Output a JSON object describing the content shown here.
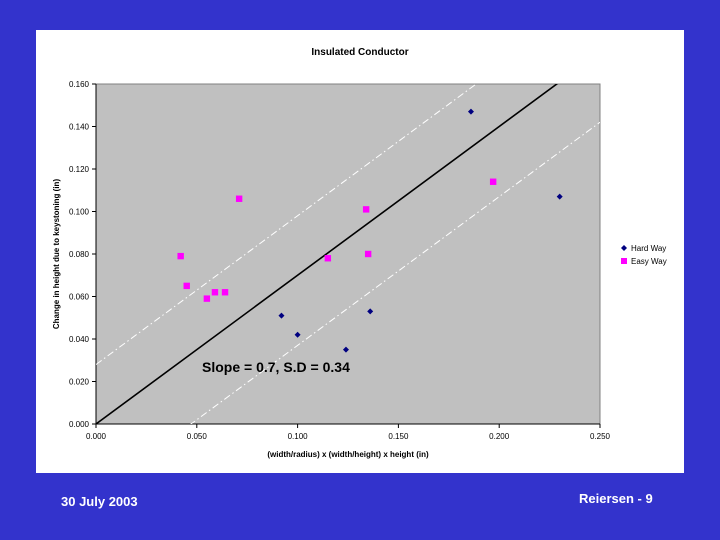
{
  "colors": {
    "background": "#3333cc",
    "panel": "#ffffff",
    "plot_area": "#c0c0c0",
    "hard_way": "#000080",
    "easy_way": "#ff00ff",
    "fit_line": "#000000",
    "band_line": "#ffffff"
  },
  "footer": {
    "date": "30 July 2003",
    "page": "Reiersen - 9"
  },
  "chart_data": {
    "type": "scatter",
    "title": "Insulated Conductor",
    "xlabel": "(width/radius) x (width/height) x height (in)",
    "ylabel": "Change in height due to keystoning (in)",
    "xlim": [
      0.0,
      0.25
    ],
    "ylim": [
      0.0,
      0.16
    ],
    "x_ticks": [
      "0.000",
      "0.050",
      "0.100",
      "0.150",
      "0.200",
      "0.250"
    ],
    "y_ticks": [
      "0.000",
      "0.020",
      "0.040",
      "0.060",
      "0.080",
      "0.100",
      "0.120",
      "0.140",
      "0.160"
    ],
    "grid": false,
    "legend_position": "right",
    "annotation": "Slope = 0.7, S.D = 0.34",
    "fit_line": {
      "slope": 0.7,
      "intercept": 0.0,
      "style": "solid"
    },
    "band_lines": [
      {
        "slope": 0.7,
        "intercept": 0.028,
        "style": "dash-dot"
      },
      {
        "slope": 0.7,
        "intercept": -0.033,
        "style": "dash-dot"
      }
    ],
    "series": [
      {
        "name": "Hard Way",
        "marker": "diamond",
        "color": "#000080",
        "points": [
          [
            0.092,
            0.051
          ],
          [
            0.1,
            0.042
          ],
          [
            0.124,
            0.035
          ],
          [
            0.136,
            0.053
          ],
          [
            0.186,
            0.147
          ],
          [
            0.23,
            0.107
          ]
        ]
      },
      {
        "name": "Easy Way",
        "marker": "square",
        "color": "#ff00ff",
        "points": [
          [
            0.042,
            0.079
          ],
          [
            0.045,
            0.065
          ],
          [
            0.055,
            0.059
          ],
          [
            0.059,
            0.062
          ],
          [
            0.064,
            0.062
          ],
          [
            0.071,
            0.106
          ],
          [
            0.115,
            0.078
          ],
          [
            0.134,
            0.101
          ],
          [
            0.135,
            0.08
          ],
          [
            0.197,
            0.114
          ]
        ]
      }
    ]
  }
}
